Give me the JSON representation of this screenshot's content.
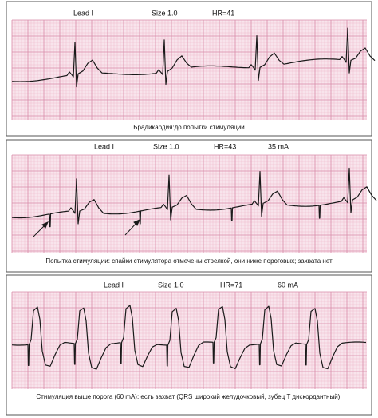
{
  "panels": [
    {
      "lead": "Lead I",
      "size": "Size 1.0",
      "hr": "HR=41",
      "caption": "Брадикардия:до попытки стимуляции"
    },
    {
      "lead": "Lead I",
      "size": "Size 1.0",
      "hr": "HR=43",
      "current": "35 mA",
      "caption": "Попытка стимуляции: спайки стимулятора отмечены стрелкой, они ниже пороговых; захвата нет"
    },
    {
      "lead": "Lead I",
      "size": "Size 1.0",
      "hr": "HR=71",
      "current": "60 mA",
      "caption": "Стимуляция выше порога (60 mA): есть захват (QRS широкий желудочковый, зубец T дискордантный)."
    }
  ]
}
